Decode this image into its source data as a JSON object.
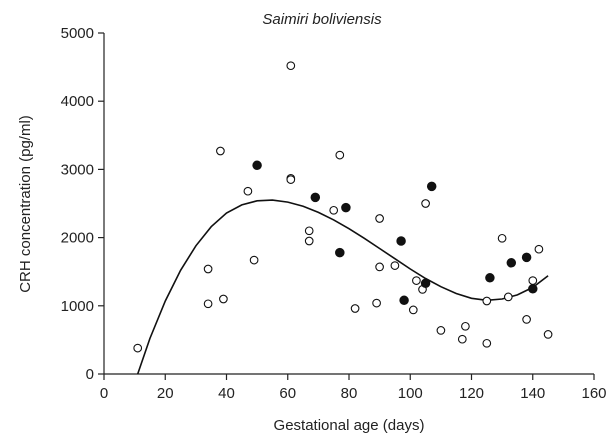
{
  "chart_data": {
    "type": "scatter",
    "title": "Saimiri boliviensis",
    "xlabel": "Gestational age (days)",
    "ylabel": "CRH concentration (pg/ml)",
    "xlim": [
      0,
      160
    ],
    "ylim": [
      0,
      5000
    ],
    "x_ticks": [
      "0",
      "20",
      "40",
      "60",
      "80",
      "100",
      "120",
      "140",
      "160"
    ],
    "y_ticks": [
      "0",
      "1000",
      "2000",
      "3000",
      "4000",
      "5000"
    ],
    "grid": false,
    "series": [
      {
        "marker": "open-circle",
        "points": [
          [
            11,
            380
          ],
          [
            34,
            1540
          ],
          [
            34,
            1030
          ],
          [
            38,
            3270
          ],
          [
            39,
            1100
          ],
          [
            47,
            2680
          ],
          [
            49,
            1670
          ],
          [
            61,
            4520
          ],
          [
            61,
            2870
          ],
          [
            61,
            2850
          ],
          [
            67,
            2100
          ],
          [
            67,
            1950
          ],
          [
            75,
            2400
          ],
          [
            77,
            3210
          ],
          [
            82,
            960
          ],
          [
            89,
            1040
          ],
          [
            90,
            2280
          ],
          [
            90,
            1570
          ],
          [
            95,
            1590
          ],
          [
            101,
            940
          ],
          [
            102,
            1370
          ],
          [
            104,
            1240
          ],
          [
            105,
            2500
          ],
          [
            110,
            640
          ],
          [
            117,
            510
          ],
          [
            118,
            700
          ],
          [
            125,
            450
          ],
          [
            125,
            1070
          ],
          [
            130,
            1990
          ],
          [
            132,
            1130
          ],
          [
            138,
            800
          ],
          [
            140,
            1370
          ],
          [
            142,
            1830
          ],
          [
            145,
            580
          ]
        ]
      },
      {
        "marker": "filled-circle",
        "points": [
          [
            50,
            3060
          ],
          [
            69,
            2590
          ],
          [
            77,
            1780
          ],
          [
            79,
            2440
          ],
          [
            97,
            1950
          ],
          [
            98,
            1080
          ],
          [
            105,
            1330
          ],
          [
            107,
            2750
          ],
          [
            126,
            1410
          ],
          [
            133,
            1630
          ],
          [
            138,
            1710
          ],
          [
            140,
            1250
          ]
        ]
      }
    ],
    "fit_curve": {
      "type": "cubic",
      "x_range": [
        10,
        145
      ],
      "points": [
        [
          11,
          0
        ],
        [
          15,
          520
        ],
        [
          20,
          1070
        ],
        [
          25,
          1520
        ],
        [
          30,
          1880
        ],
        [
          35,
          2160
        ],
        [
          40,
          2360
        ],
        [
          45,
          2480
        ],
        [
          50,
          2540
        ],
        [
          55,
          2550
        ],
        [
          60,
          2520
        ],
        [
          65,
          2460
        ],
        [
          70,
          2370
        ],
        [
          75,
          2260
        ],
        [
          80,
          2130
        ],
        [
          85,
          1990
        ],
        [
          90,
          1840
        ],
        [
          95,
          1690
        ],
        [
          100,
          1540
        ],
        [
          105,
          1400
        ],
        [
          110,
          1280
        ],
        [
          115,
          1180
        ],
        [
          120,
          1110
        ],
        [
          125,
          1080
        ],
        [
          130,
          1100
        ],
        [
          135,
          1160
        ],
        [
          140,
          1270
        ],
        [
          145,
          1440
        ]
      ]
    }
  }
}
